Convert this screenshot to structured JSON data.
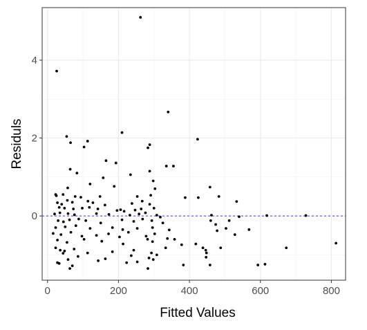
{
  "chart_data": {
    "type": "scatter",
    "title": "",
    "xlabel": "Fitted Values",
    "ylabel": "Residuls",
    "xlim": [
      -15,
      840
    ],
    "ylim": [
      -1.65,
      5.35
    ],
    "x_ticks": [
      0,
      200,
      400,
      600,
      800
    ],
    "y_ticks": [
      0,
      2,
      4
    ],
    "x_tick_labels": [
      "0",
      "200",
      "400",
      "600",
      "800"
    ],
    "y_tick_labels": [
      "0",
      "2",
      "4"
    ],
    "grid": true,
    "reference_line": {
      "y": 0,
      "color": "#3333ff",
      "style": "dashed"
    },
    "point_color": "#000000",
    "points": [
      [
        26,
        3.72
      ],
      [
        262,
        5.1
      ],
      [
        340,
        2.67
      ],
      [
        210,
        2.14
      ],
      [
        423,
        1.97
      ],
      [
        54,
        2.04
      ],
      [
        65,
        1.88
      ],
      [
        113,
        1.92
      ],
      [
        103,
        1.77
      ],
      [
        283,
        1.75
      ],
      [
        288,
        1.83
      ],
      [
        165,
        1.42
      ],
      [
        193,
        1.36
      ],
      [
        335,
        1.28
      ],
      [
        355,
        1.28
      ],
      [
        64,
        1.2
      ],
      [
        83,
        1.1
      ],
      [
        288,
        1.15
      ],
      [
        234,
        1.06
      ],
      [
        157,
        0.98
      ],
      [
        298,
        0.9
      ],
      [
        120,
        0.82
      ],
      [
        188,
        0.76
      ],
      [
        303,
        0.7
      ],
      [
        458,
        0.74
      ],
      [
        57,
        0.72
      ],
      [
        23,
        0.55
      ],
      [
        25,
        0.52
      ],
      [
        44,
        0.55
      ],
      [
        78,
        0.5
      ],
      [
        94,
        0.48
      ],
      [
        148,
        0.5
      ],
      [
        253,
        0.5
      ],
      [
        291,
        0.53
      ],
      [
        267,
        0.38
      ],
      [
        388,
        0.47
      ],
      [
        425,
        0.47
      ],
      [
        483,
        0.5
      ],
      [
        533,
        0.37
      ],
      [
        28,
        0.34
      ],
      [
        40,
        0.3
      ],
      [
        56,
        0.4
      ],
      [
        70,
        0.35
      ],
      [
        114,
        0.38
      ],
      [
        128,
        0.34
      ],
      [
        162,
        0.28
      ],
      [
        238,
        0.32
      ],
      [
        288,
        0.3
      ],
      [
        33,
        0.22
      ],
      [
        48,
        0.2
      ],
      [
        73,
        0.18
      ],
      [
        98,
        0.2
      ],
      [
        118,
        0.22
      ],
      [
        142,
        0.18
      ],
      [
        196,
        0.14
      ],
      [
        206,
        0.16
      ],
      [
        216,
        0.12
      ],
      [
        247,
        0.15
      ],
      [
        264,
        0.18
      ],
      [
        300,
        0.2
      ],
      [
        20,
        0.05
      ],
      [
        35,
        0.08
      ],
      [
        58,
        0.06
      ],
      [
        76,
        0.03
      ],
      [
        138,
        0.06
      ],
      [
        173,
        0.04
      ],
      [
        232,
        0.02
      ],
      [
        258,
        0.05
      ],
      [
        276,
        0.08
      ],
      [
        308,
        0.02
      ],
      [
        318,
        -0.03
      ],
      [
        462,
        0.02
      ],
      [
        540,
        -0.02
      ],
      [
        618,
        0.01
      ],
      [
        728,
        0.01
      ],
      [
        30,
        -0.12
      ],
      [
        45,
        -0.15
      ],
      [
        62,
        -0.1
      ],
      [
        88,
        -0.08
      ],
      [
        108,
        -0.12
      ],
      [
        150,
        -0.18
      ],
      [
        210,
        -0.1
      ],
      [
        243,
        -0.14
      ],
      [
        268,
        -0.08
      ],
      [
        294,
        -0.12
      ],
      [
        325,
        -0.18
      ],
      [
        460,
        -0.12
      ],
      [
        512,
        -0.12
      ],
      [
        23,
        -0.3
      ],
      [
        50,
        -0.28
      ],
      [
        80,
        -0.25
      ],
      [
        120,
        -0.32
      ],
      [
        183,
        -0.3
      ],
      [
        212,
        -0.35
      ],
      [
        253,
        -0.32
      ],
      [
        296,
        -0.3
      ],
      [
        343,
        -0.36
      ],
      [
        474,
        -0.22
      ],
      [
        503,
        -0.32
      ],
      [
        16,
        -0.45
      ],
      [
        38,
        -0.48
      ],
      [
        66,
        -0.42
      ],
      [
        97,
        -0.52
      ],
      [
        138,
        -0.5
      ],
      [
        172,
        -0.46
      ],
      [
        203,
        -0.54
      ],
      [
        228,
        -0.42
      ],
      [
        278,
        -0.52
      ],
      [
        302,
        -0.46
      ],
      [
        338,
        -0.58
      ],
      [
        478,
        -0.38
      ],
      [
        528,
        -0.48
      ],
      [
        568,
        -0.35
      ],
      [
        28,
        -0.62
      ],
      [
        55,
        -0.68
      ],
      [
        103,
        -0.6
      ],
      [
        153,
        -0.65
      ],
      [
        213,
        -0.72
      ],
      [
        282,
        -0.6
      ],
      [
        296,
        -0.66
      ],
      [
        358,
        -0.6
      ],
      [
        378,
        -0.74
      ],
      [
        418,
        -0.72
      ],
      [
        438,
        -0.82
      ],
      [
        446,
        -0.88
      ],
      [
        488,
        -0.82
      ],
      [
        23,
        -0.82
      ],
      [
        36,
        -0.88
      ],
      [
        48,
        -0.9
      ],
      [
        75,
        -0.85
      ],
      [
        113,
        -0.95
      ],
      [
        183,
        -0.92
      ],
      [
        243,
        -0.88
      ],
      [
        293,
        -0.95
      ],
      [
        333,
        -0.82
      ],
      [
        448,
        -0.95
      ],
      [
        673,
        -0.82
      ],
      [
        813,
        -0.7
      ],
      [
        44,
        -0.96
      ],
      [
        86,
        -1.04
      ],
      [
        236,
        -1.02
      ],
      [
        286,
        -1.08
      ],
      [
        298,
        -1.12
      ],
      [
        308,
        -1.0
      ],
      [
        447,
        -1.06
      ],
      [
        58,
        -1.12
      ],
      [
        143,
        -1.15
      ],
      [
        163,
        -1.1
      ],
      [
        223,
        -1.2
      ],
      [
        253,
        -1.18
      ],
      [
        28,
        -1.2
      ],
      [
        33,
        -1.22
      ],
      [
        70,
        -1.28
      ],
      [
        63,
        -1.35
      ],
      [
        283,
        -1.35
      ],
      [
        383,
        -1.26
      ],
      [
        458,
        -1.26
      ],
      [
        593,
        -1.26
      ],
      [
        613,
        -1.24
      ]
    ]
  }
}
